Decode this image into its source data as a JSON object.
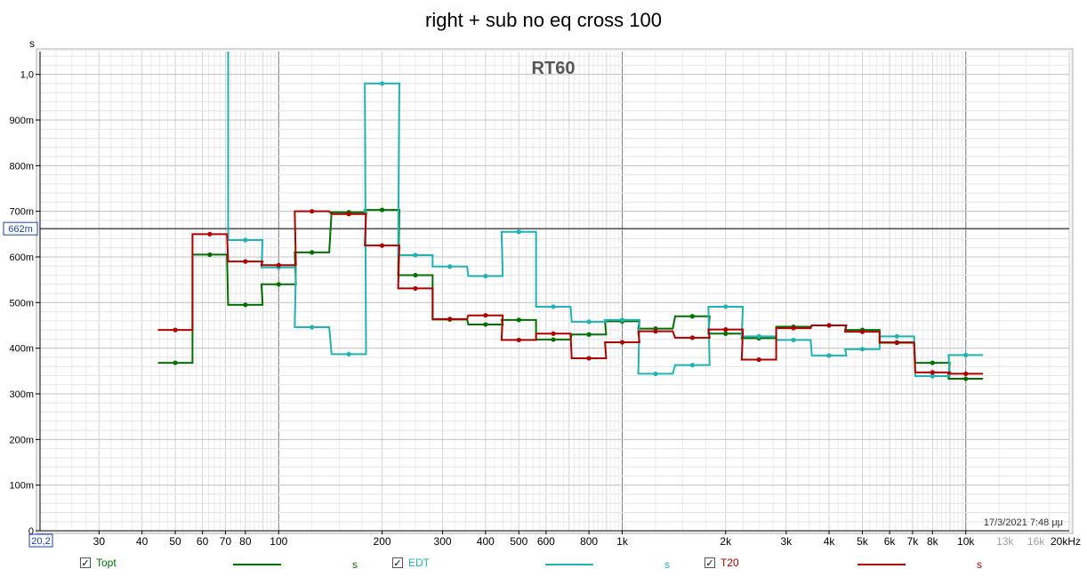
{
  "header": {
    "title": "right + sub no eq cross 100"
  },
  "chart_data": {
    "type": "line",
    "title": "RT60",
    "ylabel": "s",
    "xscale": "log",
    "xlim": [
      20.2,
      20000
    ],
    "ylim": [
      0,
      1.05
    ],
    "cursor": {
      "y": 0.662,
      "label": "662m"
    },
    "xlim_label": "20,2",
    "timestamp": "17/3/2021 7:48 μμ",
    "y_ticks": [
      {
        "v": 0,
        "label": "0"
      },
      {
        "v": 0.1,
        "label": "100m"
      },
      {
        "v": 0.2,
        "label": "200m"
      },
      {
        "v": 0.3,
        "label": "300m"
      },
      {
        "v": 0.4,
        "label": "400m"
      },
      {
        "v": 0.5,
        "label": "500m"
      },
      {
        "v": 0.6,
        "label": "600m"
      },
      {
        "v": 0.7,
        "label": "700m"
      },
      {
        "v": 0.8,
        "label": "800m"
      },
      {
        "v": 0.9,
        "label": "900m"
      },
      {
        "v": 1.0,
        "label": "1,0"
      }
    ],
    "x_ticks": [
      {
        "v": 30,
        "label": "30"
      },
      {
        "v": 40,
        "label": "40"
      },
      {
        "v": 50,
        "label": "50"
      },
      {
        "v": 60,
        "label": "60"
      },
      {
        "v": 70,
        "label": "70"
      },
      {
        "v": 80,
        "label": "80"
      },
      {
        "v": 100,
        "label": "100"
      },
      {
        "v": 200,
        "label": "200"
      },
      {
        "v": 300,
        "label": "300"
      },
      {
        "v": 400,
        "label": "400"
      },
      {
        "v": 500,
        "label": "500"
      },
      {
        "v": 600,
        "label": "600"
      },
      {
        "v": 800,
        "label": "800"
      },
      {
        "v": 1000,
        "label": "1k"
      },
      {
        "v": 2000,
        "label": "2k"
      },
      {
        "v": 3000,
        "label": "3k"
      },
      {
        "v": 4000,
        "label": "4k"
      },
      {
        "v": 5000,
        "label": "5k"
      },
      {
        "v": 6000,
        "label": "6k"
      },
      {
        "v": 7000,
        "label": "7k"
      },
      {
        "v": 8000,
        "label": "8k"
      },
      {
        "v": 10000,
        "label": "10k"
      }
    ],
    "x_ticks_dim": [
      {
        "v": 13000,
        "label": "13k"
      },
      {
        "v": 16000,
        "label": "16k"
      },
      {
        "v": 20000,
        "label": "20kHz"
      }
    ],
    "bands": [
      50,
      63,
      80,
      100,
      125,
      160,
      200,
      250,
      315,
      400,
      500,
      630,
      800,
      1000,
      1250,
      1600,
      2000,
      2500,
      3150,
      4000,
      5000,
      6300,
      8000,
      10000
    ],
    "series": [
      {
        "name": "Topt",
        "unit": "s",
        "color": "#007000",
        "values": [
          0.368,
          0.605,
          0.495,
          0.54,
          0.61,
          0.698,
          0.703,
          0.56,
          0.463,
          0.452,
          0.462,
          0.419,
          0.43,
          0.459,
          0.443,
          0.47,
          0.432,
          0.422,
          0.447,
          0.45,
          0.44,
          0.413,
          0.368,
          0.333
        ]
      },
      {
        "name": "EDT",
        "unit": "s",
        "color": "#1fb3b3",
        "values": [
          null,
          null,
          0.637,
          0.577,
          0.446,
          0.387,
          0.98,
          0.604,
          0.579,
          0.558,
          0.655,
          0.491,
          0.458,
          0.462,
          0.344,
          0.363,
          0.491,
          0.426,
          0.418,
          0.384,
          0.398,
          0.426,
          0.339,
          0.385
        ]
      },
      {
        "name": "T20",
        "unit": "s",
        "color": "#b00000",
        "values": [
          0.44,
          0.65,
          0.59,
          0.582,
          0.7,
          0.694,
          0.625,
          0.531,
          0.464,
          0.472,
          0.418,
          0.432,
          0.378,
          0.413,
          0.437,
          0.423,
          0.441,
          0.375,
          0.444,
          0.45,
          0.436,
          0.412,
          0.347,
          0.344
        ]
      }
    ]
  },
  "legend": {
    "items": [
      {
        "label": "Topt",
        "unit": "s",
        "check": "✓",
        "color": "#007000"
      },
      {
        "label": "EDT",
        "unit": "s",
        "check": "✓",
        "color": "#1fb3b3"
      },
      {
        "label": "T20",
        "unit": "s",
        "check": "✓",
        "color": "#b00000"
      }
    ]
  }
}
